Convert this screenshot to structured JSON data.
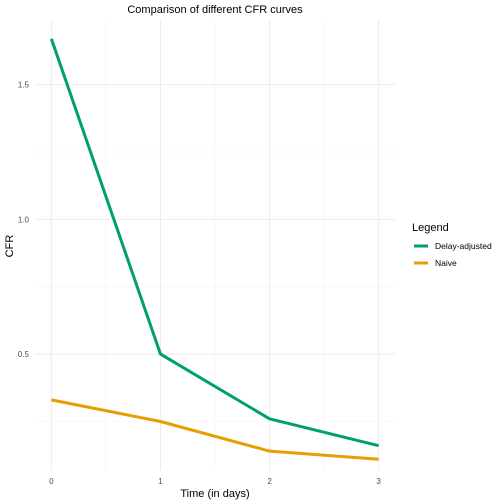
{
  "chart_data": {
    "type": "line",
    "title": "Comparison of different  CFR  curves",
    "xlabel": "Time (in days)",
    "ylabel": "CFR",
    "x": [
      0,
      1,
      2,
      3
    ],
    "x_ticks": [
      "0",
      "1",
      "2",
      "3"
    ],
    "y_ticks": [
      "0.5",
      "1.0",
      "1.5"
    ],
    "xlim": [
      -0.15,
      3.15
    ],
    "ylim": [
      0.07,
      1.74
    ],
    "grid": true,
    "legend": {
      "title": "Legend",
      "position": "right"
    },
    "series": [
      {
        "name": "Delay-adjusted",
        "color": "#009E73",
        "values": [
          1.67,
          0.5,
          0.26,
          0.16
        ]
      },
      {
        "name": "Naive",
        "color": "#E69F00",
        "values": [
          0.33,
          0.25,
          0.14,
          0.11
        ]
      }
    ]
  }
}
